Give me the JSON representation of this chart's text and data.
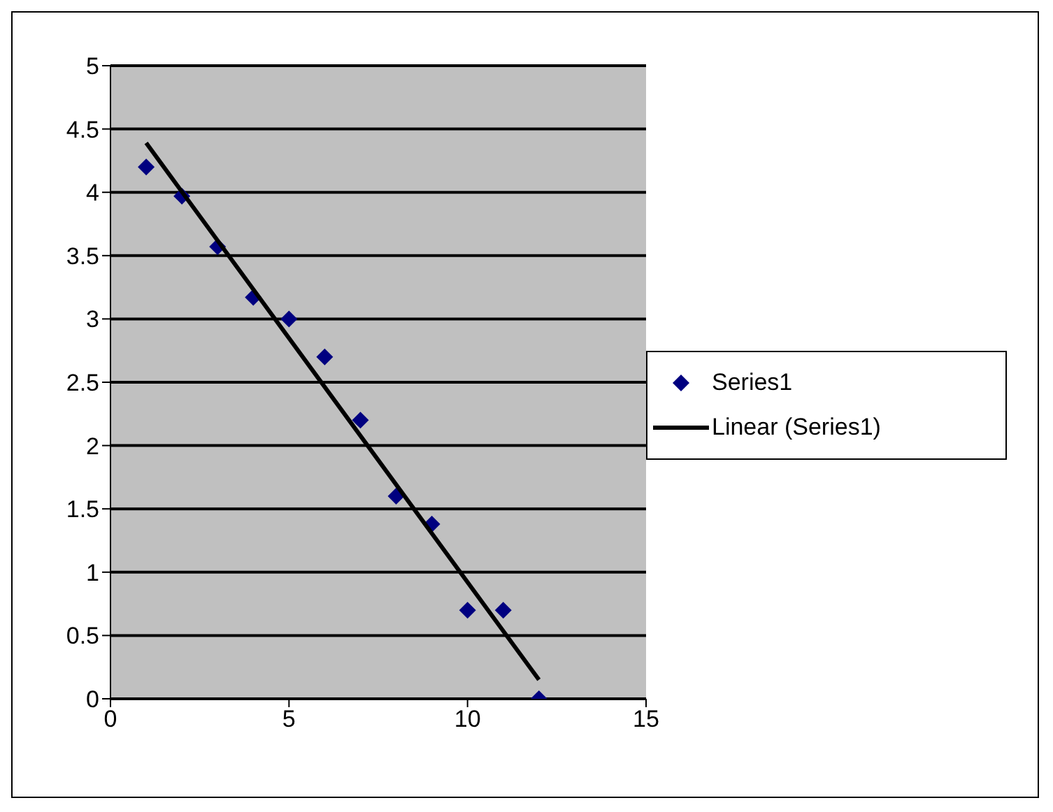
{
  "chart_data": {
    "type": "scatter",
    "x": [
      1,
      2,
      3,
      4,
      5,
      6,
      7,
      8,
      9,
      10,
      11,
      12
    ],
    "series": [
      {
        "name": "Series1",
        "color": "#000080",
        "marker": "diamond",
        "values": [
          4.2,
          3.97,
          3.57,
          3.17,
          3.0,
          2.7,
          2.2,
          1.6,
          1.38,
          0.7,
          0.7,
          0
        ]
      },
      {
        "name": "Linear (Series1)",
        "type": "line",
        "color": "#000000",
        "marker": "none",
        "line_style": "solid",
        "x": [
          1,
          12
        ],
        "values": [
          4.39,
          0.15
        ]
      }
    ],
    "xlim": [
      0,
      15
    ],
    "xticks": [
      0,
      5,
      10,
      15
    ],
    "ylim": [
      0,
      5
    ],
    "yticks": [
      0,
      0.5,
      1,
      1.5,
      2,
      2.5,
      3,
      3.5,
      4,
      4.5,
      5
    ],
    "grid": "y",
    "legend": "right"
  }
}
